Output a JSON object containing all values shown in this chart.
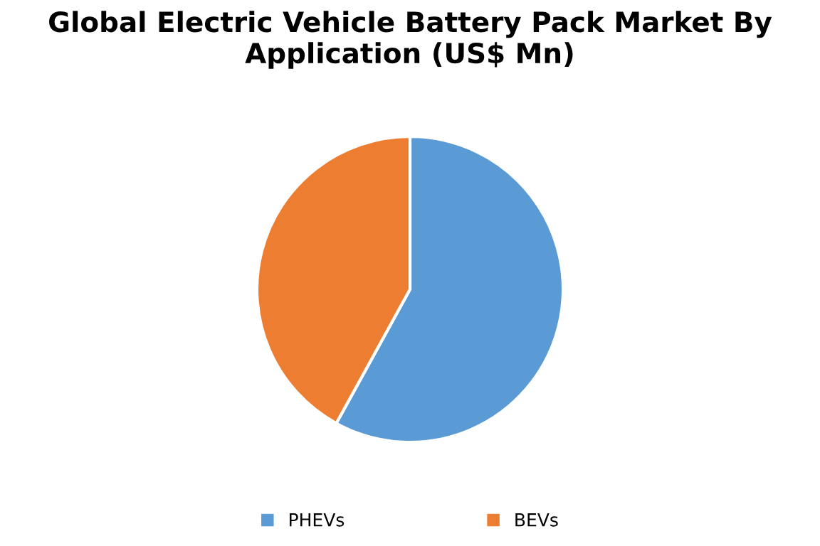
{
  "chart_data": {
    "type": "pie",
    "title": "Global Electric Vehicle Battery Pack Market By\nApplication (US$ Mn)",
    "categories": [
      "PHEVs",
      "BEVs"
    ],
    "values": [
      58,
      42
    ],
    "colors": [
      "#5b9bd5",
      "#ed7d31"
    ],
    "legend": "bottom"
  }
}
